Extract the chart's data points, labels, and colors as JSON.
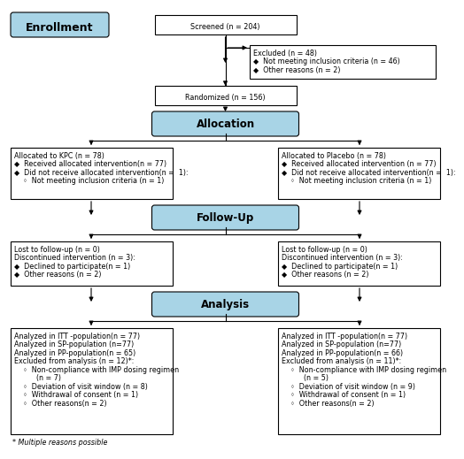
{
  "bg_color": "#ffffff",
  "blue_fill": "#a8d4e6",
  "white_fill": "#ffffff",
  "edge_color": "#000000",
  "enrollment_label": "Enrollment",
  "allocation_label": "Allocation",
  "followup_label": "Follow-Up",
  "analysis_label": "Analysis",
  "screened_text": "Screened (n = 204)",
  "excluded_line1": "Excluded (n = 48)",
  "excluded_line2": "◆  Not meeting inclusion criteria (n = 46)",
  "excluded_line3": "◆  Other reasons (n = 2)",
  "randomized_text": "Randomized (n = 156)",
  "alloc_kpc_lines": [
    "Allocated to KPC (n = 78)",
    "◆  Received allocated intervention(n = 77)",
    "◆  Did not receive allocated intervention(n =  1):",
    "    ◦  Not meeting inclusion criteria (n = 1)"
  ],
  "alloc_pbo_lines": [
    "Allocated to Placebo (n = 78)",
    "◆  Received allocated intervention (n = 77)",
    "◆  Did not receive allocated intervention(n =  1):",
    "    ◦  Not meeting inclusion criteria (n = 1)"
  ],
  "followup_kpc_lines": [
    "Lost to follow-up (n = 0)",
    "Discontinued intervention (n = 3):",
    "◆  Declined to participate(n = 1)",
    "◆  Other reasons (n = 2)"
  ],
  "followup_pbo_lines": [
    "Lost to follow-up (n = 0)",
    "Discontinued intervention (n = 3):",
    "◆  Declined to participate(n = 1)",
    "◆  Other reasons (n = 2)"
  ],
  "analysis_kpc_lines": [
    "Analyzed in ITT -population(n = 77)",
    "Analyzed in SP-population (n=77)",
    "Analyzed in PP-population(n = 65)",
    "Excluded from analysis (n = 12)*:",
    "    ◦  Non-compliance with IMP dosing regimen",
    "          (n = 7)",
    "    ◦  Deviation of visit window (n = 8)",
    "    ◦  Withdrawal of consent (n = 1)",
    "    ◦  Other reasons(n = 2)"
  ],
  "analysis_pbo_lines": [
    "Analyzed in ITT -population(n = 77)",
    "Analyzed in SP-population (n=77)",
    "Analyzed in PP-population(n = 66)",
    "Excluded from analysis (n = 11)*:",
    "    ◦  Non-compliance with IMP dosing regimen",
    "          (n = 5)",
    "    ◦  Deviation of visit window (n = 9)",
    "    ◦  Withdrawal of consent (n = 1)",
    "    ◦  Other reasons(n = 2)"
  ],
  "footnote": "* Multiple reasons possible"
}
